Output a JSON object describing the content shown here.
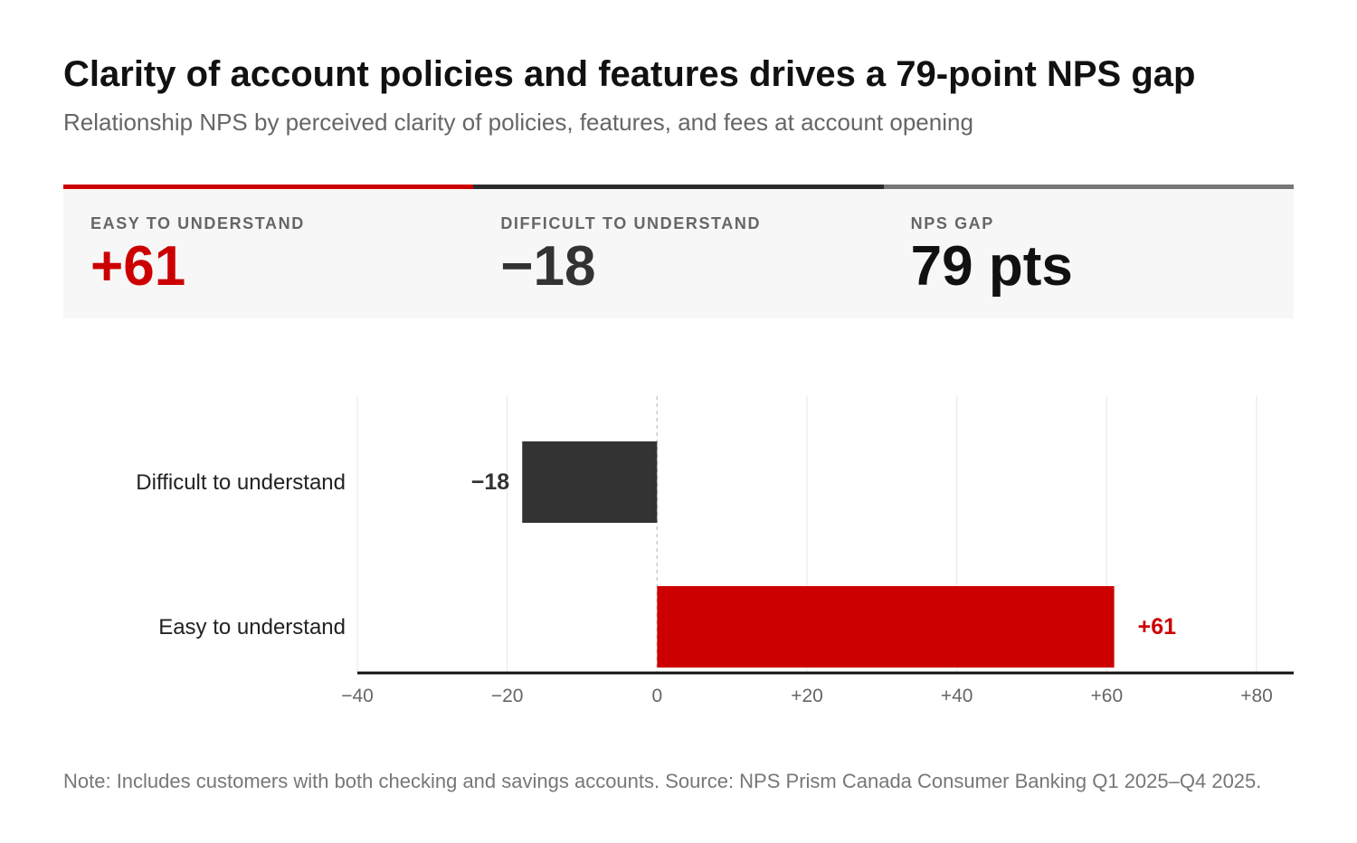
{
  "title": "Clarity of account policies and features drives a 79-point NPS gap",
  "subtitle": "Relationship NPS by perceived clarity of policies, features, and fees at account opening",
  "kpis": [
    {
      "label": "EASY TO UNDERSTAND",
      "value": "+61",
      "color": "#cc0000",
      "accent": "#cc0000"
    },
    {
      "label": "DIFFICULT TO UNDERSTAND",
      "value": "−18",
      "color": "#333333",
      "accent": "#2b2b2b"
    },
    {
      "label": "NPS GAP",
      "value": "79 pts",
      "color": "#111111",
      "accent": "#777777"
    }
  ],
  "chart_data": {
    "type": "bar",
    "orientation": "horizontal",
    "categories": [
      "Difficult to understand",
      "Easy to understand"
    ],
    "values": [
      -18,
      61
    ],
    "value_labels": [
      "−18",
      "+61"
    ],
    "colors": [
      "#333333",
      "#cc0000"
    ],
    "label_colors": [
      "#333333",
      "#cc0000"
    ],
    "xlim": [
      -40,
      80
    ],
    "xticks": [
      -40,
      -20,
      0,
      20,
      40,
      60,
      80
    ],
    "xtick_labels": [
      "−40",
      "−20",
      "0",
      "+20",
      "+40",
      "+60",
      "+80"
    ],
    "grid": true,
    "zero_line": "dashed"
  },
  "note": "Note: Includes customers with both checking and savings accounts. Source: NPS Prism Canada Consumer Banking Q1 2025–Q4 2025."
}
